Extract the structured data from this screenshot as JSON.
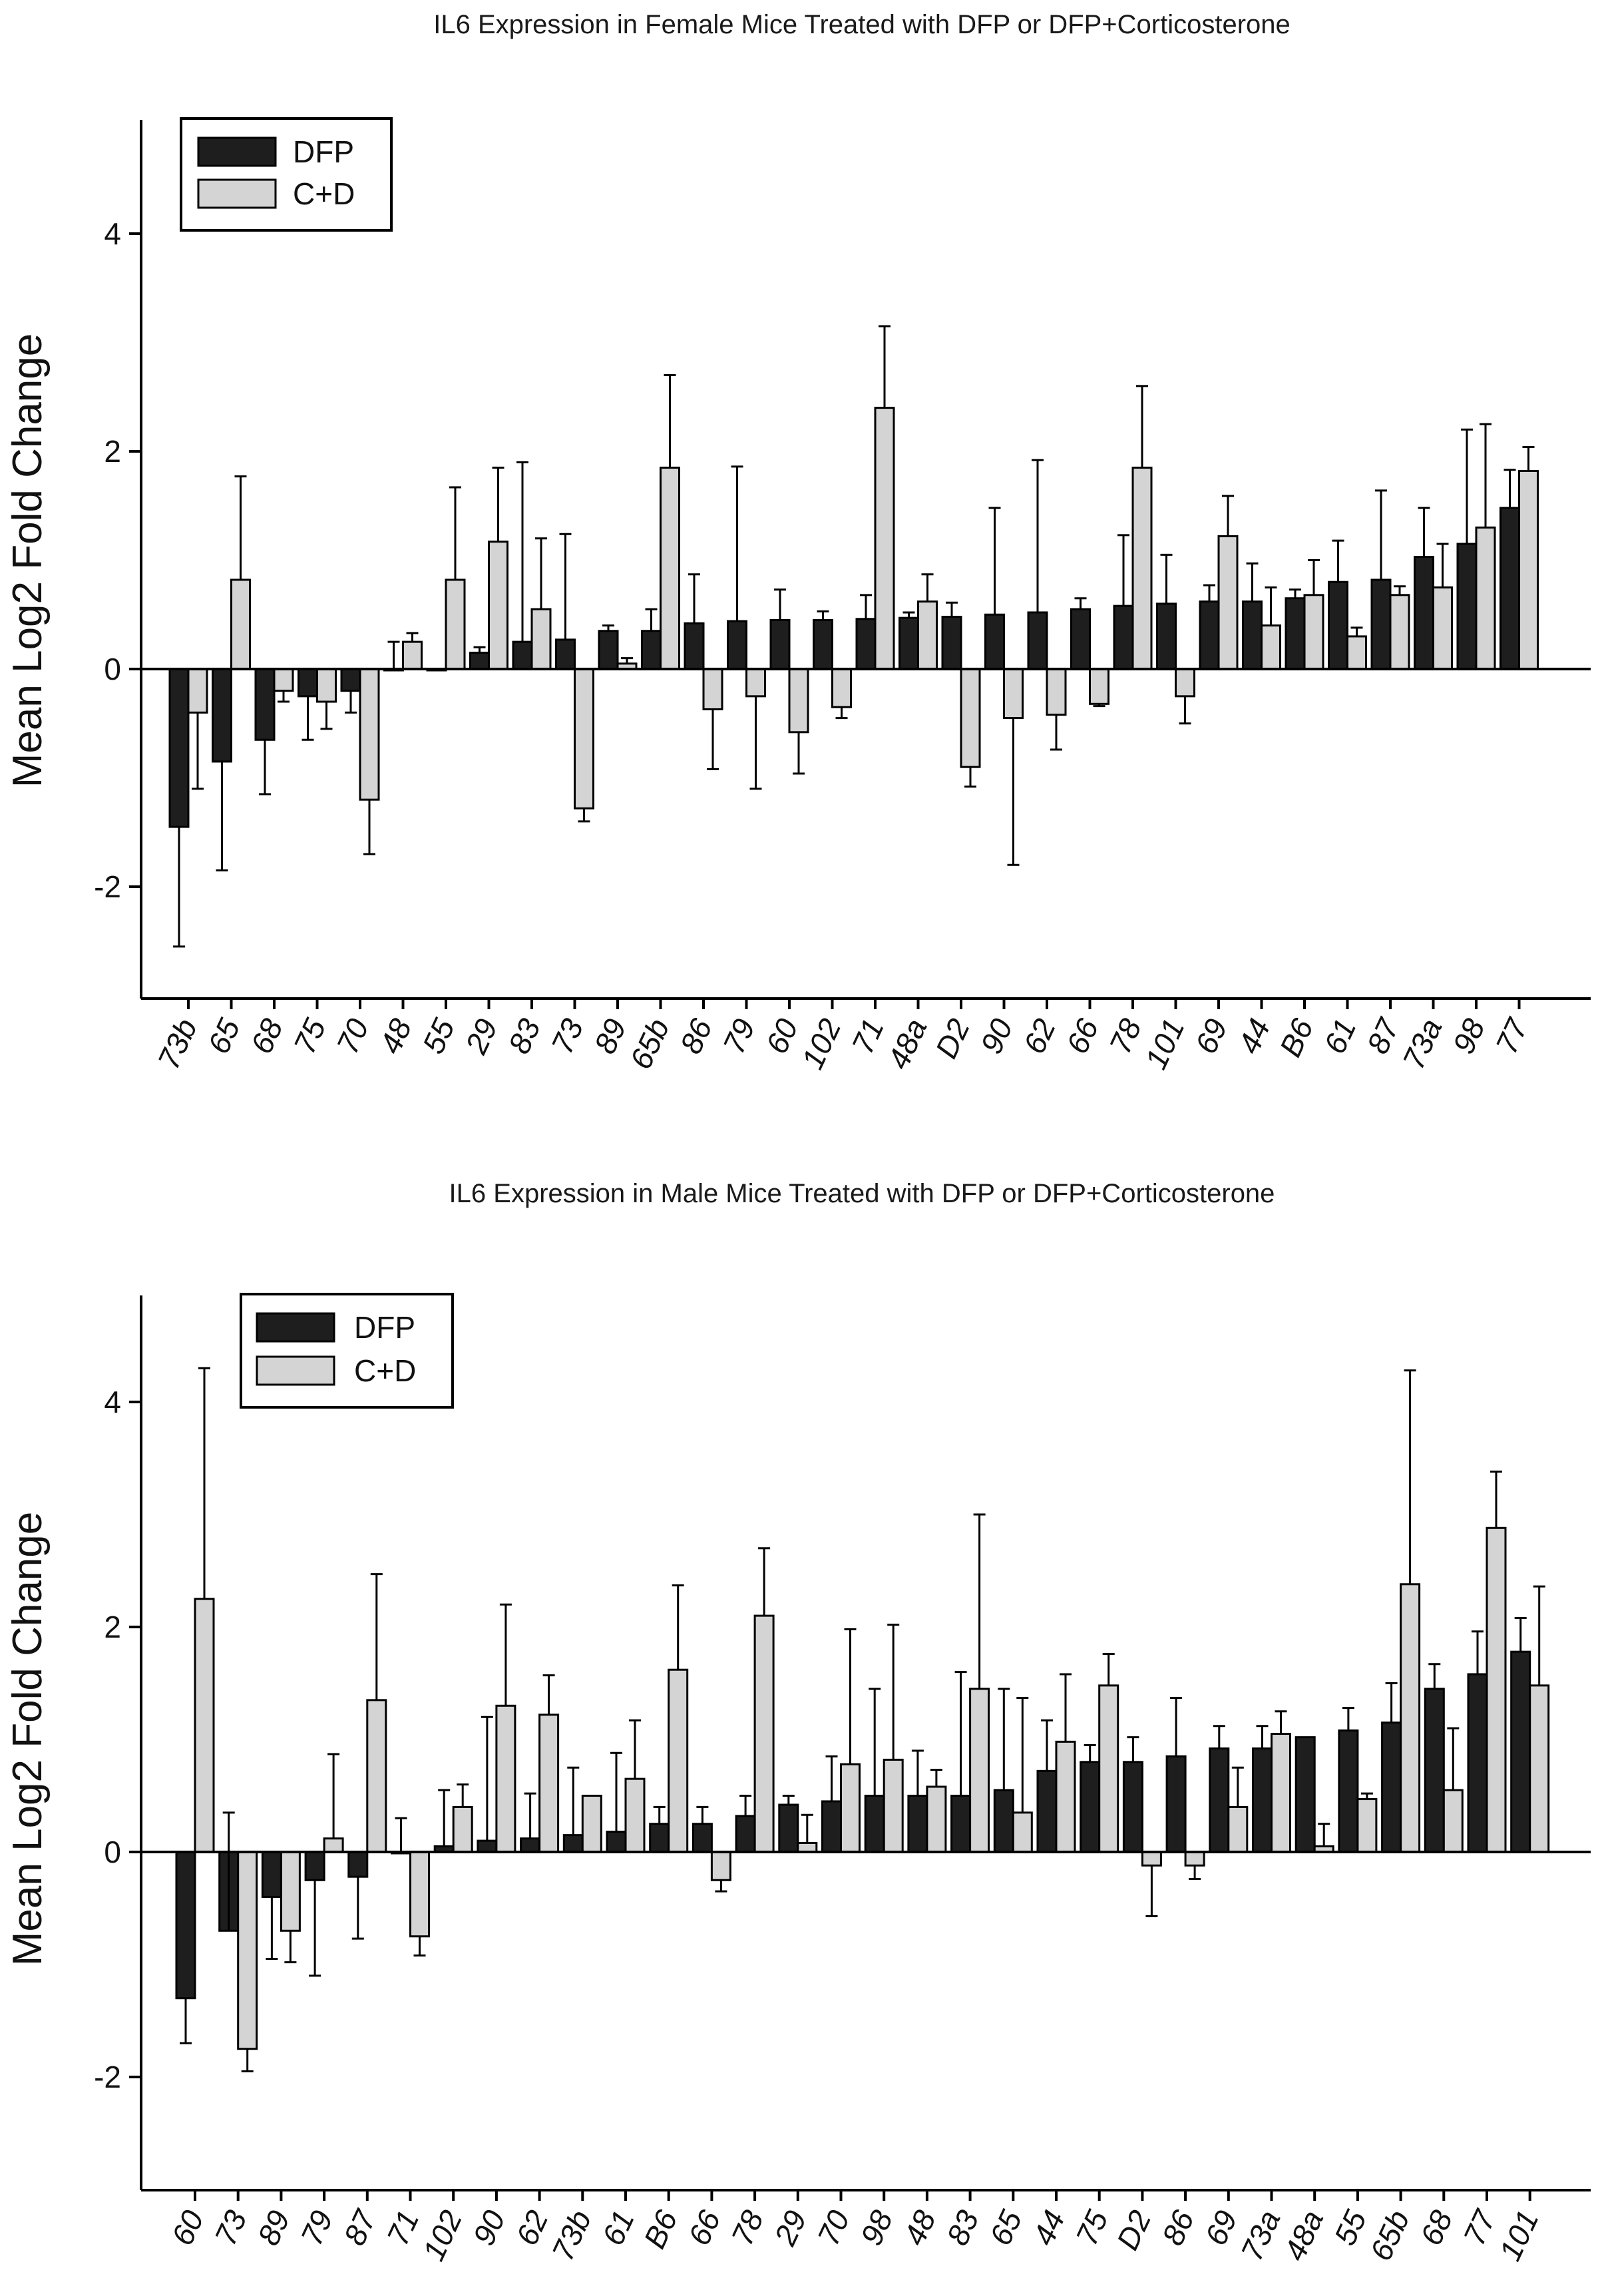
{
  "colors": {
    "dfp": "#1e1e1e",
    "cd": "#d4d4d4",
    "axis": "#000000"
  },
  "chart_data": [
    {
      "type": "bar",
      "title": "IL6 Expression in Female Mice Treated with DFP or DFP+Corticosterone",
      "xlabel": "",
      "ylabel": "Mean Log2 Fold Change",
      "ylim": [
        -3.0,
        5.0
      ],
      "yticks": [
        -2,
        0,
        2,
        4
      ],
      "grid": false,
      "legend": "top-left",
      "categories": [
        "73b",
        "65",
        "68",
        "75",
        "70",
        "48",
        "55",
        "29",
        "83",
        "73",
        "89",
        "65b",
        "86",
        "79",
        "60",
        "102",
        "71",
        "48a",
        "D2",
        "90",
        "62",
        "66",
        "78",
        "101",
        "69",
        "44",
        "B6",
        "61",
        "87",
        "73a",
        "98",
        "77"
      ],
      "series": [
        {
          "name": "DFP",
          "values": [
            -1.45,
            -0.85,
            -0.65,
            -0.25,
            -0.2,
            0.0,
            0.0,
            0.15,
            0.25,
            0.27,
            0.35,
            0.35,
            0.42,
            0.44,
            0.45,
            0.45,
            0.46,
            0.47,
            0.48,
            0.5,
            0.52,
            0.55,
            0.58,
            0.6,
            0.62,
            0.62,
            0.65,
            0.8,
            0.82,
            1.03,
            1.15,
            1.48
          ],
          "errors": [
            1.1,
            1.0,
            0.5,
            0.4,
            0.2,
            0.25,
            0.0,
            0.05,
            1.65,
            0.97,
            0.05,
            0.2,
            0.45,
            1.42,
            0.28,
            0.08,
            0.22,
            0.05,
            0.13,
            0.98,
            1.4,
            0.1,
            0.65,
            0.45,
            0.15,
            0.35,
            0.08,
            0.38,
            0.82,
            0.45,
            1.05,
            0.35
          ]
        },
        {
          "name": "C+D",
          "values": [
            -0.4,
            0.82,
            -0.2,
            -0.3,
            -1.2,
            0.25,
            0.82,
            1.17,
            0.55,
            -1.28,
            0.05,
            1.85,
            -0.37,
            -0.25,
            -0.58,
            -0.35,
            2.4,
            0.62,
            -0.9,
            -0.45,
            -0.42,
            -0.32,
            1.85,
            -0.25,
            1.22,
            0.4,
            0.68,
            0.3,
            0.68,
            0.75,
            1.3,
            1.82
          ],
          "errors": [
            0.7,
            0.95,
            0.1,
            0.25,
            0.5,
            0.08,
            0.85,
            0.68,
            0.65,
            0.12,
            0.05,
            0.85,
            0.55,
            0.85,
            0.38,
            0.1,
            0.75,
            0.25,
            0.18,
            1.35,
            0.32,
            0.02,
            0.75,
            0.25,
            0.37,
            0.35,
            0.32,
            0.08,
            0.08,
            0.4,
            0.95,
            0.22
          ]
        }
      ]
    },
    {
      "type": "bar",
      "title": "IL6 Expression in Male Mice Treated with DFP or DFP+Corticosterone",
      "xlabel": "",
      "ylabel": "Mean Log2 Fold Change",
      "ylim": [
        -3.0,
        5.0
      ],
      "yticks": [
        -2,
        0,
        2,
        4
      ],
      "grid": false,
      "legend": "top-left",
      "categories": [
        "60",
        "73",
        "89",
        "79",
        "87",
        "71",
        "102",
        "90",
        "62",
        "73b",
        "61",
        "B6",
        "66",
        "78",
        "29",
        "70",
        "98",
        "48",
        "83",
        "65",
        "44",
        "75",
        "D2",
        "86",
        "69",
        "73a",
        "48a",
        "55",
        "65b",
        "68",
        "77",
        "101"
      ],
      "series": [
        {
          "name": "DFP",
          "values": [
            -1.3,
            -0.7,
            -0.4,
            -0.25,
            -0.22,
            0.0,
            0.05,
            0.1,
            0.12,
            0.15,
            0.18,
            0.25,
            0.25,
            0.32,
            0.42,
            0.45,
            0.5,
            0.5,
            0.5,
            0.55,
            0.72,
            0.8,
            0.8,
            0.85,
            0.92,
            0.92,
            1.02,
            1.08,
            1.15,
            1.45,
            1.58,
            1.78
          ],
          "errors": [
            0.4,
            1.05,
            0.55,
            0.85,
            0.55,
            0.3,
            0.5,
            1.1,
            0.4,
            0.6,
            0.7,
            0.15,
            0.15,
            0.18,
            0.08,
            0.4,
            0.95,
            0.4,
            1.1,
            0.9,
            0.45,
            0.15,
            0.22,
            0.52,
            0.2,
            0.2,
            0.0,
            0.2,
            0.35,
            0.22,
            0.38,
            0.3
          ],
          "error_up": [
            false,
            true,
            false,
            false,
            false,
            true,
            true,
            true,
            true,
            true,
            true,
            true,
            true,
            true,
            true,
            true,
            true,
            true,
            true,
            true,
            true,
            true,
            true,
            true,
            true,
            true,
            true,
            true,
            true,
            true,
            true,
            true
          ]
        },
        {
          "name": "C+D",
          "values": [
            2.25,
            -1.75,
            -0.7,
            0.12,
            1.35,
            -0.75,
            0.4,
            1.3,
            1.22,
            0.5,
            0.65,
            1.62,
            -0.25,
            2.1,
            0.08,
            0.78,
            0.82,
            0.58,
            1.45,
            0.35,
            0.98,
            1.48,
            -0.12,
            -0.12,
            0.4,
            1.05,
            0.05,
            0.47,
            2.38,
            0.55,
            2.88,
            1.48
          ],
          "errors": [
            2.05,
            0.2,
            0.28,
            0.75,
            1.12,
            0.17,
            0.2,
            0.9,
            0.35,
            0.0,
            0.52,
            0.75,
            0.1,
            0.6,
            0.25,
            1.2,
            1.2,
            0.15,
            1.55,
            1.02,
            0.6,
            0.28,
            0.45,
            0.12,
            0.35,
            0.2,
            0.2,
            0.05,
            1.9,
            0.55,
            0.5,
            0.88
          ]
        }
      ]
    }
  ],
  "charts": [
    {
      "legend": {
        "dfp_label": "DFP",
        "cd_label": "C+D"
      }
    },
    {
      "legend": {
        "dfp_label": "DFP",
        "cd_label": "C+D"
      }
    }
  ]
}
